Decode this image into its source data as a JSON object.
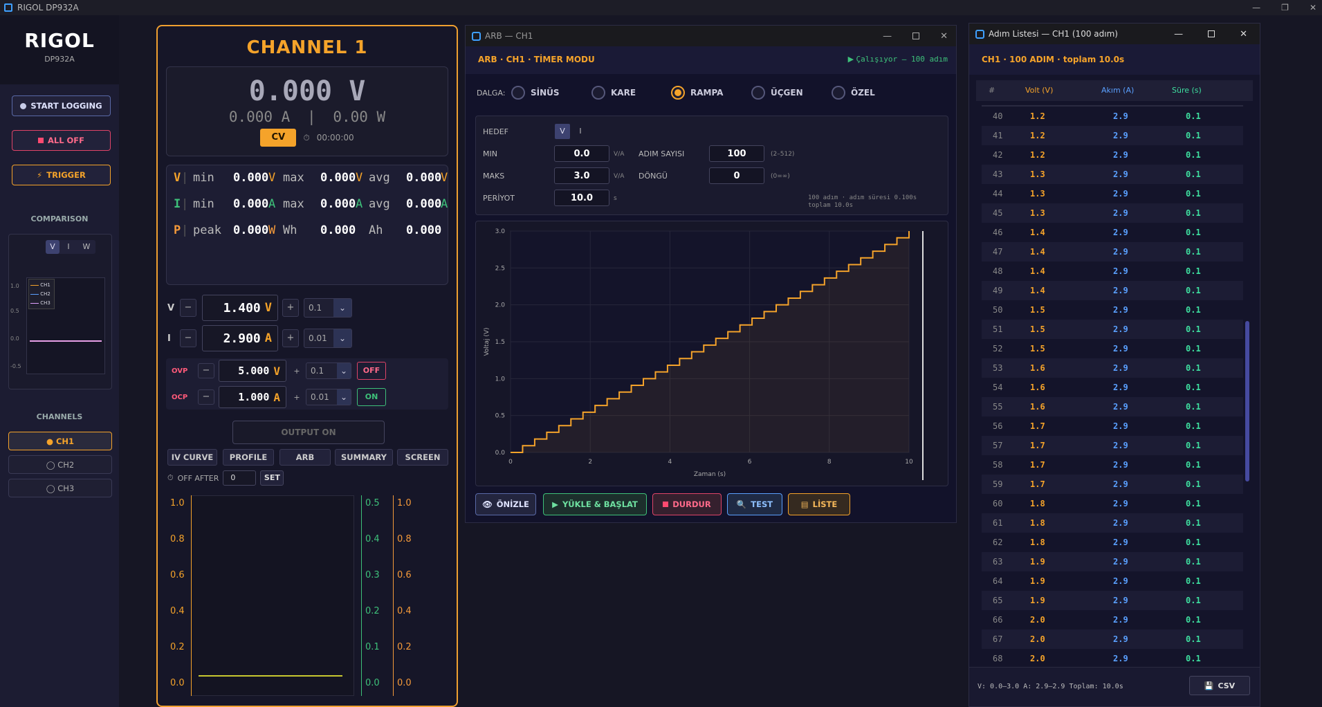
{
  "app": {
    "title": "RIGOL DP932A",
    "win_minimize": "—",
    "win_maximize": "❐",
    "win_close": "✕"
  },
  "sidebar": {
    "brand": "RIGOL",
    "model": "DP932A",
    "start_logging": "START LOGGING",
    "all_off": "ALL OFF",
    "trigger": "TRIGGER",
    "comparison_title": "COMPARISON",
    "cmp_tabs": [
      "V",
      "I",
      "W"
    ],
    "cmp_yticks": [
      "1.0",
      "0.5",
      "0.0",
      "-0.5"
    ],
    "cmp_legend": [
      "CH1",
      "CH2",
      "CH3"
    ],
    "channels_title": "CHANNELS",
    "channels": [
      "● CH1",
      "◯ CH2",
      "◯ CH3"
    ]
  },
  "channel": {
    "title": "CHANNEL  1",
    "voltage": "0.000 V",
    "current": "0.000 A",
    "sep": "|",
    "power": "0.00 W",
    "mode": "CV",
    "timer": "00:00:00",
    "stats": {
      "v": {
        "label": "V",
        "min_l": "min",
        "min": "0.000",
        "min_u": "V",
        "max_l": "max",
        "max": "0.000",
        "max_u": "V",
        "avg_l": "avg",
        "avg": "0.000",
        "avg_u": "V"
      },
      "i": {
        "label": "I",
        "min_l": "min",
        "min": "0.000",
        "min_u": "A",
        "max_l": "max",
        "max": "0.000",
        "max_u": "A",
        "avg_l": "avg",
        "avg": "0.000",
        "avg_u": "A"
      },
      "p": {
        "label": "P",
        "peak_l": "peak",
        "peak": "0.000",
        "peak_u": "W",
        "wh_l": "Wh",
        "wh": "0.000",
        "ah_l": "Ah",
        "ah": "0.000"
      }
    },
    "v_set": {
      "label": "V",
      "minus": "−",
      "value": "1.400",
      "unit": "V",
      "plus": "+",
      "step": "0.1"
    },
    "i_set": {
      "label": "I",
      "minus": "−",
      "value": "2.900",
      "unit": "A",
      "plus": "+",
      "step": "0.01"
    },
    "ovp": {
      "label": "OVP",
      "minus": "−",
      "value": "5.000",
      "unit": "V",
      "plus": "+",
      "step": "0.1",
      "state": "OFF"
    },
    "ocp": {
      "label": "OCP",
      "minus": "−",
      "value": "1.000",
      "unit": "A",
      "plus": "+",
      "step": "0.01",
      "state": "ON"
    },
    "output_on": "OUTPUT ON",
    "tabs": [
      "IV CURVE",
      "PROFILE",
      "ARB",
      "SUMMARY",
      "SCREEN"
    ],
    "off_after_label": "OFF AFTER",
    "off_after_value": "0",
    "set": "SET",
    "plot_left_ticks": [
      "1.0",
      "0.8",
      "0.6",
      "0.4",
      "0.2",
      "0.0"
    ],
    "plot_mid_ticks": [
      "0.5",
      "0.4",
      "0.3",
      "0.2",
      "0.1",
      "0.0"
    ],
    "plot_right_ticks": [
      "1.0",
      "0.8",
      "0.6",
      "0.4",
      "0.2",
      "0.0"
    ]
  },
  "arb": {
    "window_title": "ARB — CH1",
    "header": "ARB · CH1 · TİMER MODU",
    "status": "Çalışıyor  —  100 adım",
    "wave_label": "DALGA:",
    "waves": [
      "SİNÜS",
      "KARE",
      "RAMPA",
      "ÜÇGEN",
      "ÖZEL"
    ],
    "selected_wave": "RAMPA",
    "target_label": "HEDEF",
    "target_opts": [
      "V",
      "I"
    ],
    "min_label": "MIN",
    "min": "0.0",
    "min_unit": "V/A",
    "max_label": "MAKS",
    "max": "3.0",
    "max_unit": "V/A",
    "period_label": "PERİYOT",
    "period": "10.0",
    "period_unit": "s",
    "steps_label": "ADIM SAYISI",
    "steps": "100",
    "steps_hint": "(2–512)",
    "loop_label": "DÖNGÜ",
    "loop": "0",
    "loop_hint": "(0=∞)",
    "info1": "100 adım  ·  adım süresi 0.100s",
    "info2": "toplam 10.0s",
    "buttons": {
      "preview": "ÖNİZLE",
      "load_start": "YÜKLE & BAŞLAT",
      "stop": "DURDUR",
      "test": "TEST",
      "list": "LİSTE"
    }
  },
  "chart_data": {
    "type": "line",
    "title": "",
    "xlabel": "Zaman (s)",
    "ylabel": "Voltaj (V)",
    "xlim": [
      0,
      10
    ],
    "ylim": [
      0,
      3
    ],
    "xticks": [
      "0",
      "2",
      "4",
      "6",
      "8",
      "10"
    ],
    "yticks": [
      "0.0",
      "0.5",
      "1.0",
      "1.5",
      "2.0",
      "2.5",
      "3.0"
    ],
    "grid": true,
    "series": [
      {
        "start": 0.0,
        "end": 3.0,
        "steps": 100,
        "step_duration": 0.1,
        "shape": "staircase"
      }
    ]
  },
  "list": {
    "window_title": "Adım Listesi — CH1  (100 adım)",
    "header": "CH1 · 100 ADIM · toplam 10.0s",
    "cols": [
      "#",
      "Volt (V)",
      "Akım (A)",
      "Süre (s)"
    ],
    "rows": [
      [
        "40",
        "1.2",
        "2.9",
        "0.1"
      ],
      [
        "41",
        "1.2",
        "2.9",
        "0.1"
      ],
      [
        "42",
        "1.2",
        "2.9",
        "0.1"
      ],
      [
        "43",
        "1.3",
        "2.9",
        "0.1"
      ],
      [
        "44",
        "1.3",
        "2.9",
        "0.1"
      ],
      [
        "45",
        "1.3",
        "2.9",
        "0.1"
      ],
      [
        "46",
        "1.4",
        "2.9",
        "0.1"
      ],
      [
        "47",
        "1.4",
        "2.9",
        "0.1"
      ],
      [
        "48",
        "1.4",
        "2.9",
        "0.1"
      ],
      [
        "49",
        "1.4",
        "2.9",
        "0.1"
      ],
      [
        "50",
        "1.5",
        "2.9",
        "0.1"
      ],
      [
        "51",
        "1.5",
        "2.9",
        "0.1"
      ],
      [
        "52",
        "1.5",
        "2.9",
        "0.1"
      ],
      [
        "53",
        "1.6",
        "2.9",
        "0.1"
      ],
      [
        "54",
        "1.6",
        "2.9",
        "0.1"
      ],
      [
        "55",
        "1.6",
        "2.9",
        "0.1"
      ],
      [
        "56",
        "1.7",
        "2.9",
        "0.1"
      ],
      [
        "57",
        "1.7",
        "2.9",
        "0.1"
      ],
      [
        "58",
        "1.7",
        "2.9",
        "0.1"
      ],
      [
        "59",
        "1.7",
        "2.9",
        "0.1"
      ],
      [
        "60",
        "1.8",
        "2.9",
        "0.1"
      ],
      [
        "61",
        "1.8",
        "2.9",
        "0.1"
      ],
      [
        "62",
        "1.8",
        "2.9",
        "0.1"
      ],
      [
        "63",
        "1.9",
        "2.9",
        "0.1"
      ],
      [
        "64",
        "1.9",
        "2.9",
        "0.1"
      ],
      [
        "65",
        "1.9",
        "2.9",
        "0.1"
      ],
      [
        "66",
        "2.0",
        "2.9",
        "0.1"
      ],
      [
        "67",
        "2.0",
        "2.9",
        "0.1"
      ],
      [
        "68",
        "2.0",
        "2.9",
        "0.1"
      ]
    ],
    "footer": "V: 0.0–3.0  A: 2.9–2.9  Toplam: 10.0s",
    "csv": "CSV"
  },
  "colors": {
    "accent": "#f5a32a",
    "voltage": "#f5a32a",
    "current": "#3ec17a",
    "power": "#f59a3a",
    "volt_col": "#f5a32a",
    "amp_col": "#5aa0ff",
    "time_col": "#3ee0a0"
  }
}
